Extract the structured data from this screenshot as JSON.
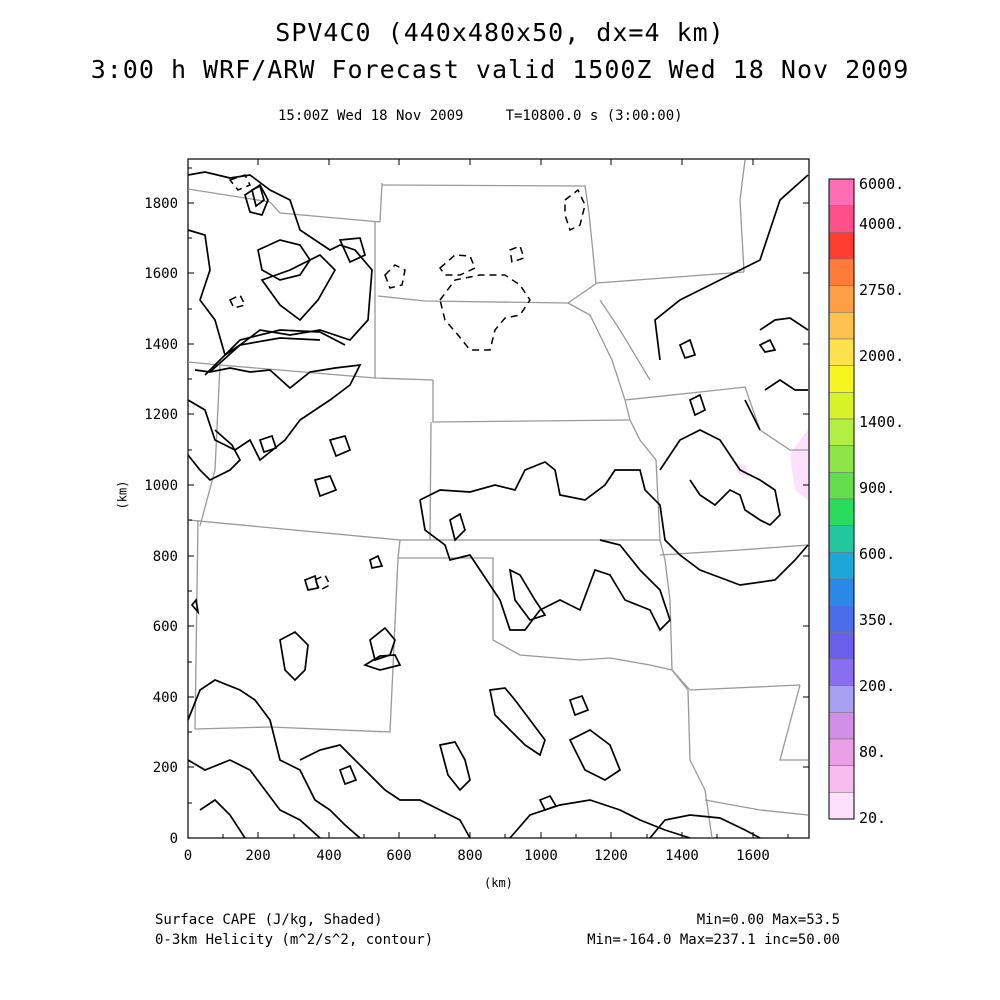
{
  "header": {
    "title_line1": "SPV4C0 (440x480x50, dx=4 km)",
    "title_line2": "3:00 h WRF/ARW Forecast valid 1500Z Wed 18 Nov 2009",
    "subtitle": "15:00Z Wed 18 Nov 2009     T=10800.0 s (3:00:00)"
  },
  "axes": {
    "xlabel": "(km)",
    "ylabel": "(km)",
    "x_ticks": [
      "0",
      "200",
      "400",
      "600",
      "800",
      "1000",
      "1200",
      "1400",
      "1600"
    ],
    "y_ticks": [
      "0",
      "200",
      "400",
      "600",
      "800",
      "1000",
      "1200",
      "1400",
      "1600",
      "1800"
    ]
  },
  "colorbar": {
    "labels": [
      "6000.",
      "4000.",
      "2750.",
      "2000.",
      "1400.",
      "900.",
      "600.",
      "350.",
      "200.",
      "80.",
      "20."
    ],
    "colors": [
      "#ff6eb4",
      "#ff4f8a",
      "#ff3c2f",
      "#ff7b3a",
      "#ff9f45",
      "#ffc24e",
      "#ffe14d",
      "#f7f520",
      "#d8f22a",
      "#b3ee45",
      "#8fe44a",
      "#63dd4e",
      "#2bdb5e",
      "#23c79e",
      "#1fa6d8",
      "#2c88e6",
      "#4a6ee9",
      "#6a5fea",
      "#8a6ef0",
      "#a79ff0",
      "#d28fe8",
      "#ea9ee6",
      "#f7bdef",
      "#fde0fb"
    ]
  },
  "footer": {
    "left1": "Surface CAPE (J/kg, Shaded)",
    "left2": "0-3km Helicity (m^2/s^2, contour)",
    "right1": "Min=0.00 Max=53.5",
    "right2": "Min=-164.0 Max=237.1 inc=50.00"
  }
}
